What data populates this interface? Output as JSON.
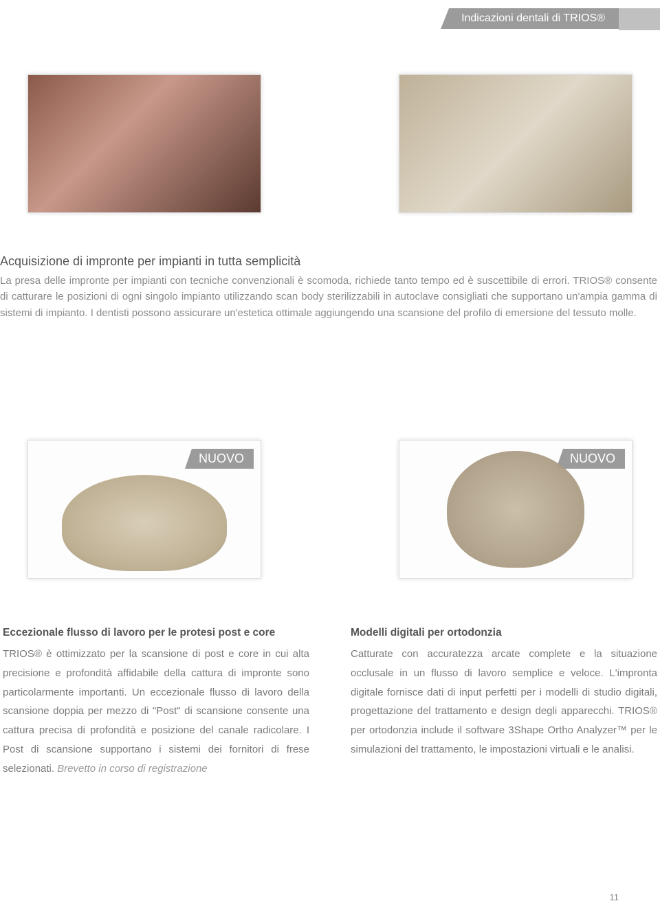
{
  "header_tab": "Indicazioni dentali di TRIOS®",
  "section1": {
    "title": "Acquisizione di impronte per impianti in tutta semplicità",
    "body": "La presa delle impronte per impianti con tecniche convenzionali è scomoda, richiede tanto tempo ed è suscettibile di errori. TRIOS® consente di catturare le posizioni di ogni singolo impianto utilizzando scan body sterilizzabili in autoclave consigliati che supportano un'ampia gamma di sistemi di impianto. I dentisti possono assicurare un'estetica ottimale aggiungendo una scansione del profilo di emersione del tessuto molle."
  },
  "badge_text": "NUOVO",
  "col_left": {
    "title": "Eccezionale flusso di lavoro per le protesi post e core",
    "body": "TRIOS® è ottimizzato per la scansione di post e core in cui alta precisione e profondità affidabile della cattura di impronte sono particolarmente importanti. Un eccezionale flusso di lavoro della scansione doppia per mezzo di \"Post\" di scansione consente una cattura precisa di profondità e posizione del canale radicolare. I Post di scansione supportano i sistemi dei fornitori di frese selezionati.",
    "italic": " Brevetto in corso di registrazione"
  },
  "col_right": {
    "title": "Modelli digitali per ortodonzia",
    "body": "Catturate con accuratezza arcate complete e la situazione occlusale in un flusso di lavoro semplice e veloce. L'impronta digitale fornisce dati di input perfetti per i modelli di studio digitali, progettazione del trattamento e design degli apparecchi. TRIOS® per ortodonzia include il software 3Shape Ortho Analyzer™ per le simulazioni del trattamento, le impostazioni virtuali e le analisi."
  },
  "page_number": "11",
  "colors": {
    "tab_bg": "#9b9b9b",
    "tab_text": "#ffffff",
    "body_text": "#8a8a8a",
    "heading_text": "#555555"
  }
}
